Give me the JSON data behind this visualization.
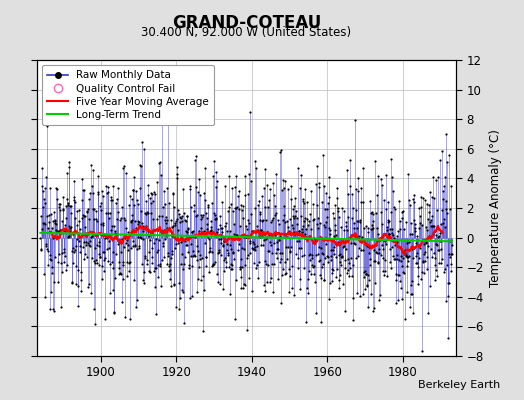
{
  "title": "GRAND-COTEAU",
  "subtitle": "30.400 N, 92.000 W (United States)",
  "ylabel": "Temperature Anomaly (°C)",
  "attribution": "Berkeley Earth",
  "year_start": 1884,
  "year_end": 1993,
  "ylim": [
    -8,
    12
  ],
  "yticks": [
    -8,
    -6,
    -4,
    -2,
    0,
    2,
    4,
    6,
    8,
    10,
    12
  ],
  "xticks": [
    1900,
    1920,
    1940,
    1960,
    1980
  ],
  "raw_color": "#3333cc",
  "raw_marker_color": "#000000",
  "moving_avg_color": "#ff0000",
  "trend_color": "#00cc00",
  "qc_fail_color": "#ff69b4",
  "background_color": "#e0e0e0",
  "plot_bg_color": "#ffffff",
  "grid_color": "#bbbbbb",
  "seed": 12345,
  "n_months": 1320,
  "raw_std": 2.2,
  "ma_window": 60
}
